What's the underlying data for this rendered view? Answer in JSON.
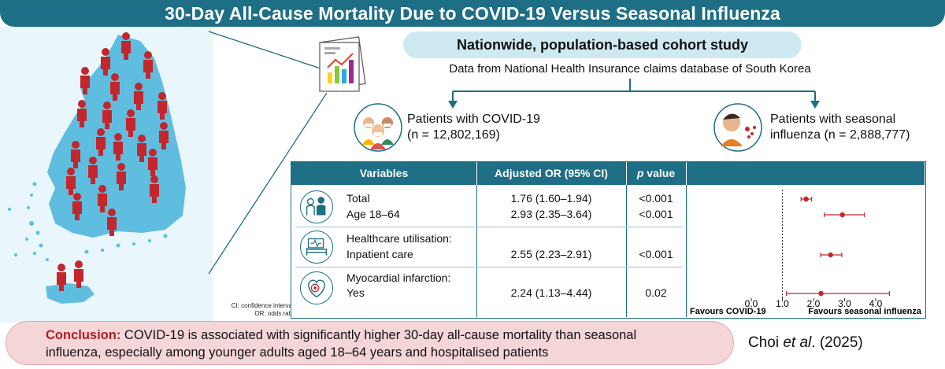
{
  "title": "30-Day All-Cause Mortality Due to COVID-19 Versus Seasonal Influenza",
  "study": {
    "design": "Nationwide, population-based cohort study",
    "data_source": "Data from National Health Insurance claims database of South Korea"
  },
  "cohorts": {
    "covid": {
      "line1": "Patients with COVID-19",
      "line2": "(n = 12,802,169)"
    },
    "flu": {
      "line1": "Patients with seasonal",
      "line2": "influenza (n = 2,888,777)"
    }
  },
  "table": {
    "headers": {
      "variables": "Variables",
      "or": "Adjusted OR (95% CI)",
      "p_italic": "p",
      "p_rest": " value"
    },
    "rows": [
      {
        "label": "Total",
        "or": "1.76 (1.60–1.94)",
        "p": "<0.001"
      },
      {
        "label": "Age 18–64",
        "or": "2.93 (2.35–3.64)",
        "p": "<0.001"
      },
      {
        "label": "Healthcare utilisation:",
        "or": "",
        "p": ""
      },
      {
        "label": "Inpatient care",
        "or": "2.55 (2.23–2.91)",
        "p": "<0.001"
      },
      {
        "label": "Myocardial infarction:",
        "or": "",
        "p": ""
      },
      {
        "label": "Yes",
        "or": "2.24 (1.13–4.44)",
        "p": "0.02"
      }
    ]
  },
  "chart_data": {
    "type": "scatter",
    "title": "",
    "xlabel_left": "Favours COVID-19",
    "xlabel_right": "Favours seasonal influenza",
    "xlim": [
      0,
      4
    ],
    "xticks": [
      "0.0",
      "1.0",
      "2.0",
      "3.0",
      "4.0"
    ],
    "reference_line": 1.0,
    "points": [
      {
        "name": "Total",
        "x": 1.76,
        "lo": 1.6,
        "hi": 1.94
      },
      {
        "name": "Age 18–64",
        "x": 2.93,
        "lo": 2.35,
        "hi": 3.64
      },
      {
        "name": "Inpatient care",
        "x": 2.55,
        "lo": 2.23,
        "hi": 2.91
      },
      {
        "name": "Myocardial infarction: Yes",
        "x": 2.24,
        "lo": 1.13,
        "hi": 4.44
      }
    ],
    "point_color": "#c1272d"
  },
  "abbrev": {
    "ci": "CI: confidence interval;",
    "or": "OR: odds ratio"
  },
  "conclusion": {
    "label": "Conclusion:",
    "line1": " COVID-19 is associated with significantly higher 30-day all-cause mortality than seasonal",
    "line2": "influenza, especially among younger adults aged 18–64 years and hospitalised patients"
  },
  "citation": {
    "author": "Choi ",
    "etal": "et al",
    "rest": ". (2025)"
  },
  "colors": {
    "teal": "#1e6e86",
    "person": "#c1272d",
    "map": "#5fbde0"
  }
}
